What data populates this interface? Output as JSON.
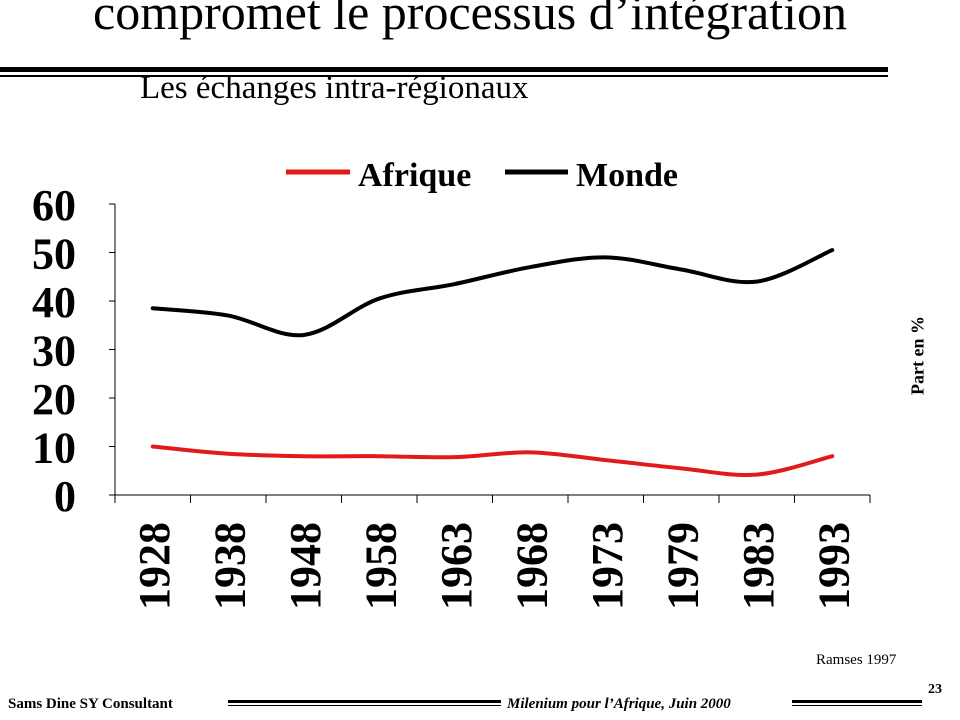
{
  "slide": {
    "title": "compromet le processus d’intégration",
    "subtitle": "Les échanges intra-régionaux"
  },
  "chart_data": {
    "type": "line",
    "categories": [
      "1928",
      "1938",
      "1948",
      "1958",
      "1963",
      "1968",
      "1973",
      "1979",
      "1983",
      "1993"
    ],
    "series": [
      {
        "name": "Afrique",
        "color": "#e31a1c",
        "values": [
          10,
          8.5,
          8,
          8,
          7.8,
          8.8,
          7.2,
          5.5,
          4.2,
          8
        ]
      },
      {
        "name": "Monde",
        "color": "#000000",
        "values": [
          38.5,
          37,
          33,
          40.5,
          43.5,
          47,
          49,
          46.5,
          44,
          50.5
        ]
      }
    ],
    "yticks": [
      "0",
      "10",
      "20",
      "30",
      "40",
      "50",
      "60"
    ],
    "ylim": [
      0,
      60
    ],
    "ylabel": "Part en %",
    "xlabel": "",
    "grid": false,
    "legend_position": "top"
  },
  "source": "Ramses 1997",
  "footer": {
    "left": "Sams Dine SY Consultant",
    "right": "Milenium pour l’Afrique, Juin 2000",
    "page": "23"
  }
}
